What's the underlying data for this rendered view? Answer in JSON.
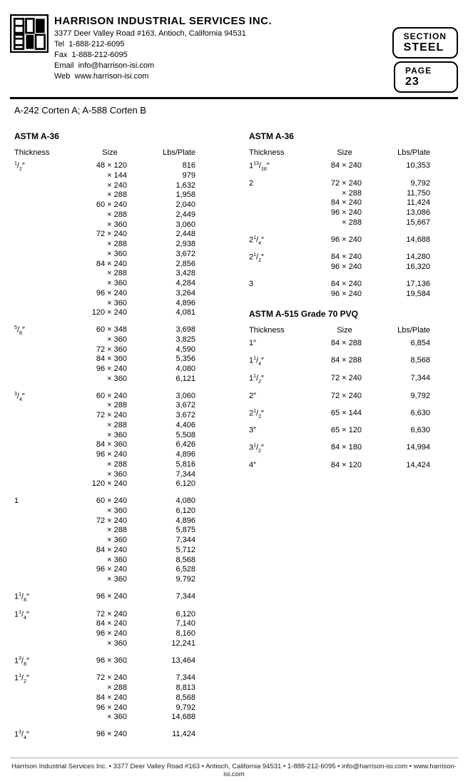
{
  "header": {
    "company_name": "HARRISON INDUSTRIAL SERVICES INC.",
    "address": "3377 Deer Valley Road #163, Antioch, California 94531",
    "tel_label": "Tel",
    "tel": "1-888-212-6095",
    "fax_label": "Fax",
    "fax": "1-888-212-6095",
    "email_label": "Email",
    "email": "info@harrison-isi.com",
    "web_label": "Web",
    "web": "www.harrison-isi.com"
  },
  "right_boxes": {
    "section_label": "SECTION",
    "section_value": "STEEL",
    "page_label": "PAGE",
    "page_value": "23"
  },
  "subtitle": "A-242 Corten A; A-588 Corten B",
  "col_headers": {
    "c1": "Thickness",
    "c2": "Size",
    "c3": "Lbs/Plate"
  },
  "left": {
    "title": "ASTM A-36",
    "groups": [
      {
        "thk": "1/2\"",
        "rows": [
          [
            "48 × 120",
            "816"
          ],
          [
            "× 144",
            "979"
          ],
          [
            "× 240",
            "1,632"
          ],
          [
            "× 288",
            "1,958"
          ],
          [
            "60 × 240",
            "2,040"
          ],
          [
            "× 288",
            "2,449"
          ],
          [
            "× 360",
            "3,060"
          ],
          [
            "72 × 240",
            "2,448"
          ],
          [
            "× 288",
            "2,938"
          ],
          [
            "× 360",
            "3,672"
          ],
          [
            "84 × 240",
            "2,856"
          ],
          [
            "× 288",
            "3,428"
          ],
          [
            "× 360",
            "4,284"
          ],
          [
            "96 × 240",
            "3,264"
          ],
          [
            "× 360",
            "4,896"
          ],
          [
            "120 × 240",
            "4,081"
          ]
        ]
      },
      {
        "thk": "5/8\"",
        "rows": [
          [
            "60 × 348",
            "3,698"
          ],
          [
            "× 360",
            "3,825"
          ],
          [
            "72 × 360",
            "4,590"
          ],
          [
            "84 × 360",
            "5,356"
          ],
          [
            "96 × 240",
            "4,080"
          ],
          [
            "× 360",
            "6,121"
          ]
        ]
      },
      {
        "thk": "3/4\"",
        "rows": [
          [
            "60 × 240",
            "3,060"
          ],
          [
            "× 288",
            "3,672"
          ],
          [
            "72 × 240",
            "3,672"
          ],
          [
            "× 288",
            "4,406"
          ],
          [
            "× 360",
            "5,508"
          ],
          [
            "84 × 360",
            "6,426"
          ],
          [
            "96 × 240",
            "4,896"
          ],
          [
            "× 288",
            "5,816"
          ],
          [
            "× 360",
            "7,344"
          ],
          [
            "120 × 240",
            "6,120"
          ]
        ]
      },
      {
        "thk": "1",
        "rows": [
          [
            "60 × 240",
            "4,080"
          ],
          [
            "× 360",
            "6,120"
          ],
          [
            "72 × 240",
            "4,896"
          ],
          [
            "× 288",
            "5,875"
          ],
          [
            "× 360",
            "7,344"
          ],
          [
            "84 × 240",
            "5,712"
          ],
          [
            "× 360",
            "8,568"
          ],
          [
            "96 × 240",
            "6,528"
          ],
          [
            "× 360",
            "9,792"
          ]
        ]
      },
      {
        "thk": "1 1/8\"",
        "rows": [
          [
            "96 × 240",
            "7,344"
          ]
        ]
      },
      {
        "thk": "1 1/4\"",
        "rows": [
          [
            "72 × 240",
            "6,120"
          ],
          [
            "84 × 240",
            "7,140"
          ],
          [
            "96 × 240",
            "8,160"
          ],
          [
            "× 360",
            "12,241"
          ]
        ]
      },
      {
        "thk": "1 3/8\"",
        "rows": [
          [
            "96 × 360",
            "13,464"
          ]
        ]
      },
      {
        "thk": "1 1/2\"",
        "rows": [
          [
            "72 × 240",
            "7,344"
          ],
          [
            "× 288",
            "8,813"
          ],
          [
            "84 × 240",
            "8,568"
          ],
          [
            "96 × 240",
            "9,792"
          ],
          [
            "× 360",
            "14,688"
          ]
        ]
      },
      {
        "thk": "1 3/4\"",
        "rows": [
          [
            "96 × 240",
            "11,424"
          ]
        ]
      }
    ]
  },
  "right_a36": {
    "title": "ASTM A-36",
    "groups": [
      {
        "thk": "1 13/16\"",
        "rows": [
          [
            "84 × 240",
            "10,353"
          ]
        ]
      },
      {
        "thk": "2",
        "rows": [
          [
            "72 × 240",
            "9,792"
          ],
          [
            "× 288",
            "11,750"
          ],
          [
            "84 × 240",
            "11,424"
          ],
          [
            "96 × 240",
            "13,086"
          ],
          [
            "× 288",
            "15,667"
          ]
        ]
      },
      {
        "thk": "2 1/4\"",
        "rows": [
          [
            "96 × 240",
            "14,688"
          ]
        ]
      },
      {
        "thk": "2 1/2\"",
        "rows": [
          [
            "84 × 240",
            "14,280"
          ],
          [
            "96 × 240",
            "16,320"
          ]
        ]
      },
      {
        "thk": "3",
        "rows": [
          [
            "84 × 240",
            "17,136"
          ],
          [
            "96 × 240",
            "19,584"
          ]
        ]
      }
    ]
  },
  "right_a515": {
    "title": "ASTM A-515 Grade 70 PVQ",
    "groups": [
      {
        "thk": "1\"",
        "rows": [
          [
            "84 × 288",
            "6,854"
          ]
        ]
      },
      {
        "thk": "1 1/4\"",
        "rows": [
          [
            "84 × 288",
            "8,568"
          ]
        ]
      },
      {
        "thk": "1 1/2\"",
        "rows": [
          [
            "72 × 240",
            "7,344"
          ]
        ]
      },
      {
        "thk": "2\"",
        "rows": [
          [
            "72 × 240",
            "9,792"
          ]
        ]
      },
      {
        "thk": "2 1/2\"",
        "rows": [
          [
            "65 × 144",
            "6,630"
          ]
        ]
      },
      {
        "thk": "3\"",
        "rows": [
          [
            "65 × 120",
            "6,630"
          ]
        ]
      },
      {
        "thk": "3 1/2\"",
        "rows": [
          [
            "84 × 180",
            "14,994"
          ]
        ]
      },
      {
        "thk": "4\"",
        "rows": [
          [
            "84 × 120",
            "14,424"
          ]
        ]
      }
    ]
  },
  "footer": "Harrison Industrial Services Inc. • 3377 Deer Valley Road #163 • Antioch, California 94531 • 1-888-212-6095 • info@harrison-isi.com • www.harrison-isi.com",
  "styles": {
    "text_color": "#000000",
    "background": "#ffffff",
    "footer_color": "#222222",
    "rule_color": "#000000",
    "box_border_radius": 10,
    "base_font_size": 11
  }
}
